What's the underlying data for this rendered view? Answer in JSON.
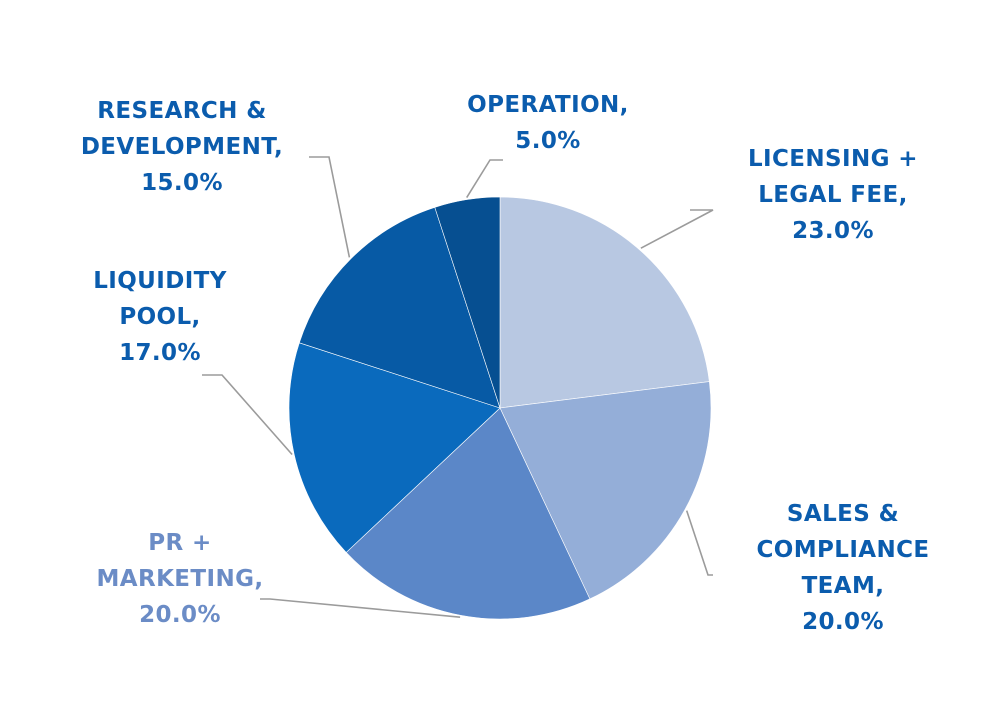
{
  "chart_data": {
    "type": "pie",
    "title": "",
    "categories": [
      "LICENSING + LEGAL FEE",
      "SALES & COMPLIANCE TEAM",
      "PR + MARKETING",
      "LIQUIDITY POOL",
      "RESEARCH & DEVELOPMENT",
      "OPERATION"
    ],
    "values": [
      23.0,
      20.0,
      20.0,
      17.0,
      15.0,
      5.0
    ],
    "value_labels": [
      "23.0%",
      "20.0%",
      "20.0%",
      "17.0%",
      "15.0%",
      "5.0%"
    ],
    "label_lines": [
      [
        "LICENSING +",
        "LEGAL FEE,",
        "23.0%"
      ],
      [
        "SALES &",
        "COMPLIANCE",
        "TEAM,",
        "20.0%"
      ],
      [
        "PR +",
        "MARKETING,",
        "20.0%"
      ],
      [
        "LIQUIDITY",
        "POOL,",
        "17.0%"
      ],
      [
        "RESEARCH &",
        "DEVELOPMENT,",
        "15.0%"
      ],
      [
        "OPERATION,",
        "5.0%"
      ]
    ],
    "colors": [
      "#b8c8e2",
      "#94aed8",
      "#5b87c8",
      "#0a6abd",
      "#075aa5",
      "#064f91"
    ],
    "label_colors": [
      "#0b5cad",
      "#0b5cad",
      "#6b8cc6",
      "#0b5cad",
      "#0b5cad",
      "#0b5cad"
    ],
    "legend": "none"
  }
}
